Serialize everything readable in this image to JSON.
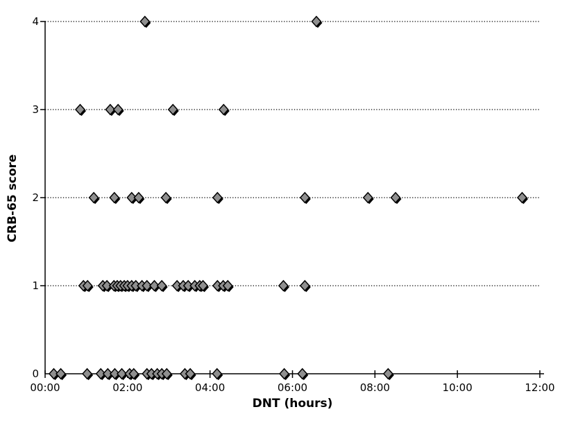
{
  "figure": {
    "xlabel": "DNT (hours)",
    "ylabel": "CRB-65 score"
  },
  "chart_data": {
    "type": "scatter",
    "title": "",
    "xlabel": "DNT (hours)",
    "ylabel": "CRB-65 score",
    "x_axis": {
      "min_hours": 0,
      "max_hours": 12,
      "tick_interval_hours": 2,
      "tick_labels": [
        "00:00",
        "02:00",
        "04:00",
        "06:00",
        "08:00",
        "10:00",
        "12:00"
      ]
    },
    "y_axis": {
      "min": 0,
      "max": 4,
      "ticks": [
        0,
        1,
        2,
        3,
        4
      ]
    },
    "grid": {
      "horizontal_dotted": true,
      "vertical": false
    },
    "legend": "none",
    "marker": {
      "shape": "diamond",
      "fill": "#8f8f8f",
      "stroke": "#000000",
      "shadow": "#000000"
    },
    "series": [
      {
        "name": "CRB-65 score 0",
        "score": 0,
        "dnt_hours": [
          0.21,
          0.38,
          1.02,
          1.35,
          1.52,
          1.69,
          1.86,
          2.05,
          2.15,
          2.47,
          2.58,
          2.72,
          2.83,
          2.95,
          3.39,
          3.52,
          4.17,
          5.8,
          6.24,
          8.32
        ]
      },
      {
        "name": "CRB-65 score 1",
        "score": 1,
        "dnt_hours": [
          0.93,
          1.03,
          1.4,
          1.5,
          1.67,
          1.75,
          1.83,
          1.92,
          2.0,
          2.1,
          2.2,
          2.35,
          2.47,
          2.65,
          2.83,
          3.2,
          3.35,
          3.47,
          3.63,
          3.75,
          3.83,
          4.18,
          4.32,
          4.43,
          5.78,
          6.3
        ]
      },
      {
        "name": "CRB-65 score 2",
        "score": 2,
        "dnt_hours": [
          1.18,
          1.68,
          2.1,
          2.27,
          2.93,
          4.18,
          6.3,
          7.83,
          8.5,
          11.57
        ]
      },
      {
        "name": "CRB-65 score 3",
        "score": 3,
        "dnt_hours": [
          0.85,
          1.58,
          1.77,
          3.1,
          4.33
        ]
      },
      {
        "name": "CRB-65 score 4",
        "score": 4,
        "dnt_hours": [
          2.42,
          6.58
        ]
      }
    ]
  }
}
